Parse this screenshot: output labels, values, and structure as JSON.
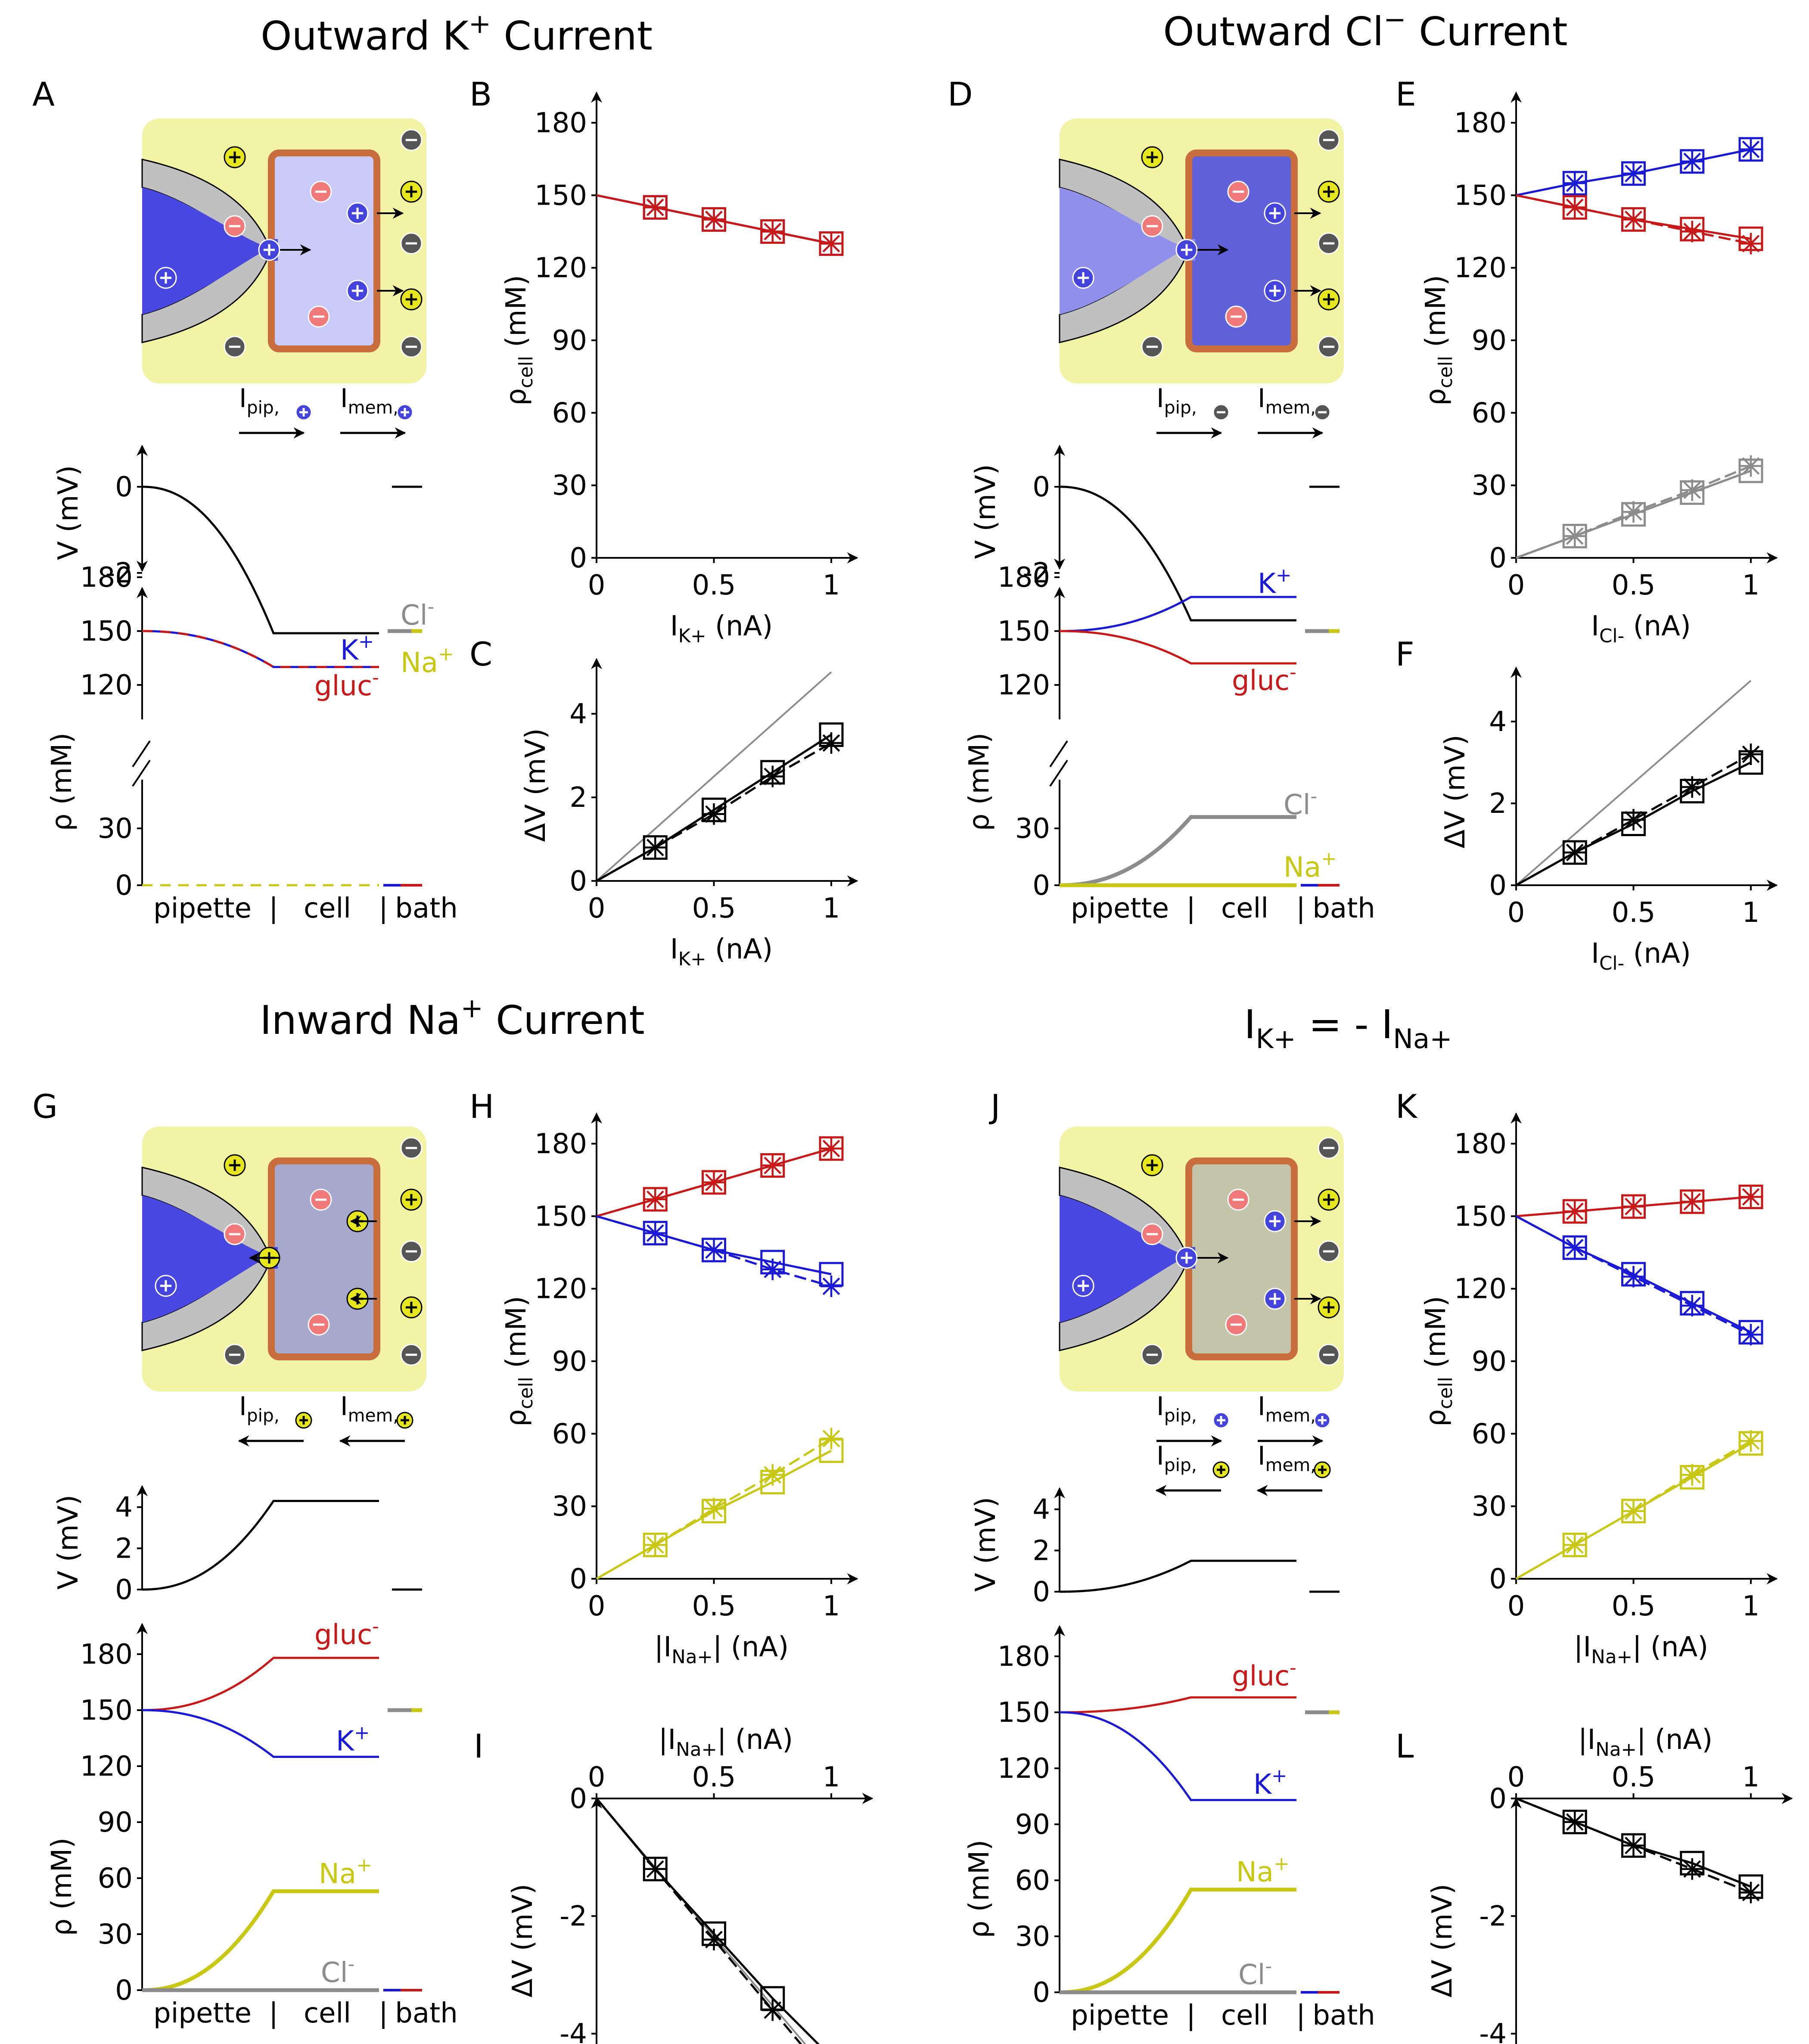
{
  "sections": [
    {
      "title": "Outward K",
      "sup": "+",
      "tail": " Current"
    },
    {
      "title": "Outward Cl",
      "sup": "−",
      "tail": " Current"
    },
    {
      "title": "Inward Na",
      "sup": "+",
      "tail": " Current"
    },
    {
      "title": "I",
      "sub": "K+",
      "mid": " = - I",
      "sub2": "Na+"
    }
  ],
  "panel_letters": [
    "A",
    "B",
    "C",
    "D",
    "E",
    "F",
    "G",
    "H",
    "I",
    "J",
    "K",
    "L"
  ],
  "colors": {
    "K": "#1a1ad6",
    "gluc": "#c81818",
    "Cl": "#8c8c8c",
    "Na": "#c8c814",
    "black": "#000000",
    "bath": "#f3f3a6",
    "membrane": "#c86e3c"
  },
  "labels": {
    "pipette": "pipette",
    "cell": "cell",
    "bath": "bath",
    "sep": "|",
    "v_axis": "V (mV)",
    "rho_axis": "ρ (mM)",
    "rho_cell": "ρ",
    "rho_cell_sub": "cell",
    "rho_cell_unit": " (mM)",
    "dv_axis": "ΔV (mV)",
    "nA": " (nA)",
    "I": "I",
    "K": "K",
    "plus": "+",
    "gluc": "gluc",
    "minus": "-",
    "Cl": "Cl",
    "Na": "Na",
    "ipip": "I",
    "ipip_sub": "pip,",
    "imem": "I",
    "imem_sub": "mem,"
  },
  "xlabels": {
    "IK": "K+",
    "ICl": "Cl-",
    "INa": "Na+"
  },
  "chart_data": [
    {
      "id": "B",
      "type": "line",
      "xlabel": "I_K+ (nA)",
      "ylabel": "ρ_cell (mM)",
      "xlim": [
        0,
        1
      ],
      "ylim": [
        0,
        180
      ],
      "xticks": [
        "0",
        "0.5",
        "1"
      ],
      "yticks": [
        "0",
        "30",
        "60",
        "90",
        "120",
        "150",
        "180"
      ],
      "series": [
        {
          "color": "K",
          "x": [
            0,
            0.25,
            0.5,
            0.75,
            1
          ],
          "y": [
            150,
            145,
            140,
            135,
            130
          ]
        },
        {
          "color": "gluc",
          "x": [
            0,
            0.25,
            0.5,
            0.75,
            1
          ],
          "y": [
            150,
            145,
            140,
            135,
            130
          ]
        }
      ]
    },
    {
      "id": "C",
      "type": "line",
      "xlabel": "I_K+ (nA)",
      "ylabel": "ΔV (mV)",
      "xlim": [
        0,
        1
      ],
      "ylim": [
        0,
        5
      ],
      "xticks": [
        "0",
        "0.5",
        "1"
      ],
      "yticks": [
        "0",
        "2",
        "4"
      ],
      "series": [
        {
          "color": "Cl",
          "x": [
            0,
            1
          ],
          "y": [
            0,
            5
          ],
          "nomarker": true
        },
        {
          "color": "black",
          "x": [
            0,
            0.25,
            0.5,
            0.75,
            1
          ],
          "y": [
            0,
            0.8,
            1.7,
            2.6,
            3.5
          ],
          "y2": [
            0,
            0.8,
            1.6,
            2.5,
            3.3
          ]
        }
      ]
    },
    {
      "id": "E",
      "type": "line",
      "xlabel": "I_Cl- (nA)",
      "ylabel": "ρ_cell (mM)",
      "xlim": [
        0,
        1
      ],
      "ylim": [
        0,
        180
      ],
      "xticks": [
        "0",
        "0.5",
        "1"
      ],
      "yticks": [
        "0",
        "30",
        "60",
        "90",
        "120",
        "150",
        "180"
      ],
      "series": [
        {
          "color": "K",
          "x": [
            0,
            0.25,
            0.5,
            0.75,
            1
          ],
          "y": [
            150,
            155,
            159,
            164,
            169
          ]
        },
        {
          "color": "gluc",
          "x": [
            0,
            0.25,
            0.5,
            0.75,
            1
          ],
          "y": [
            150,
            145,
            140,
            136,
            132
          ],
          "y2": [
            150,
            145,
            140,
            135,
            130
          ]
        },
        {
          "color": "Cl",
          "x": [
            0,
            0.25,
            0.5,
            0.75,
            1
          ],
          "y": [
            0,
            9,
            18,
            27,
            36
          ],
          "y2": [
            0,
            9,
            19,
            28,
            38
          ]
        }
      ]
    },
    {
      "id": "F",
      "type": "line",
      "xlabel": "I_Cl- (nA)",
      "ylabel": "ΔV (mV)",
      "xlim": [
        0,
        1
      ],
      "ylim": [
        0,
        5
      ],
      "xticks": [
        "0",
        "0.5",
        "1"
      ],
      "yticks": [
        "0",
        "2",
        "4"
      ],
      "series": [
        {
          "color": "Cl",
          "x": [
            0,
            1
          ],
          "y": [
            0,
            5
          ],
          "nomarker": true
        },
        {
          "color": "black",
          "x": [
            0,
            0.25,
            0.5,
            0.75,
            1
          ],
          "y": [
            0,
            0.8,
            1.5,
            2.3,
            3.0
          ],
          "y2": [
            0,
            0.8,
            1.6,
            2.4,
            3.2
          ]
        }
      ]
    },
    {
      "id": "H",
      "type": "line",
      "xlabel": "|I_Na+| (nA)",
      "ylabel": "ρ_cell (mM)",
      "xlim": [
        0,
        1
      ],
      "ylim": [
        0,
        180
      ],
      "xticks": [
        "0",
        "0.5",
        "1"
      ],
      "yticks": [
        "0",
        "30",
        "60",
        "90",
        "120",
        "150",
        "180"
      ],
      "series": [
        {
          "color": "gluc",
          "x": [
            0,
            0.25,
            0.5,
            0.75,
            1
          ],
          "y": [
            150,
            157,
            164,
            171,
            178
          ]
        },
        {
          "color": "K",
          "x": [
            0,
            0.25,
            0.5,
            0.75,
            1
          ],
          "y": [
            150,
            143,
            136,
            131,
            126
          ],
          "y2": [
            150,
            143,
            136,
            128,
            121
          ]
        },
        {
          "color": "Na",
          "x": [
            0,
            0.25,
            0.5,
            0.75,
            1
          ],
          "y": [
            0,
            14,
            28,
            40,
            53
          ],
          "y2": [
            0,
            14,
            29,
            43,
            58
          ]
        }
      ]
    },
    {
      "id": "I",
      "type": "line",
      "xlabel": "|I_Na+| (nA)",
      "ylabel": "ΔV (mV)",
      "xlim": [
        0,
        1
      ],
      "ylim": [
        -5,
        0
      ],
      "xticks": [
        "0",
        "0.5",
        "1"
      ],
      "yticks": [
        "0",
        "-2",
        "-4"
      ],
      "xaxis_top": true,
      "series": [
        {
          "color": "Cl",
          "x": [
            0,
            1
          ],
          "y": [
            0,
            -4.7
          ],
          "nomarker": true
        },
        {
          "color": "black",
          "x": [
            0,
            0.25,
            0.5,
            0.75,
            1
          ],
          "y": [
            0,
            -1.2,
            -2.3,
            -3.4,
            -4.4
          ],
          "y2": [
            0,
            -1.2,
            -2.4,
            -3.6,
            -4.8
          ]
        }
      ]
    },
    {
      "id": "K",
      "type": "line",
      "xlabel": "|I_Na+| (nA)",
      "ylabel": "ρ_cell (mM)",
      "xlim": [
        0,
        1
      ],
      "ylim": [
        0,
        180
      ],
      "xticks": [
        "0",
        "0.5",
        "1"
      ],
      "yticks": [
        "0",
        "30",
        "60",
        "90",
        "120",
        "150",
        "180"
      ],
      "series": [
        {
          "color": "gluc",
          "x": [
            0,
            0.25,
            0.5,
            0.75,
            1
          ],
          "y": [
            150,
            152,
            154,
            156,
            158
          ]
        },
        {
          "color": "K",
          "x": [
            0,
            0.25,
            0.5,
            0.75,
            1
          ],
          "y": [
            150,
            137,
            126,
            114,
            102
          ],
          "y2": [
            150,
            137,
            125,
            113,
            101
          ]
        },
        {
          "color": "Na",
          "x": [
            0,
            0.25,
            0.5,
            0.75,
            1
          ],
          "y": [
            0,
            14,
            28,
            42,
            56
          ],
          "y2": [
            0,
            14,
            28,
            43,
            57
          ]
        }
      ]
    },
    {
      "id": "L",
      "type": "line",
      "xlabel": "|I_Na+| (nA)",
      "ylabel": "ΔV (mV)",
      "xlim": [
        0,
        1
      ],
      "ylim": [
        -5,
        0
      ],
      "xticks": [
        "0",
        "0.5",
        "1"
      ],
      "yticks": [
        "0",
        "-2",
        "-4"
      ],
      "xaxis_top": true,
      "series": [
        {
          "color": "black",
          "x": [
            0,
            0.25,
            0.5,
            0.75,
            1
          ],
          "y": [
            0,
            -0.4,
            -0.8,
            -1.1,
            -1.5
          ],
          "y2": [
            0,
            -0.4,
            -0.8,
            -1.2,
            -1.6
          ]
        }
      ]
    }
  ],
  "profiles": [
    {
      "id": "A",
      "v_yticks": [
        "0",
        "-2"
      ],
      "v_final": -3.4,
      "rho_top_ticks": [
        "120",
        "150",
        "180"
      ],
      "rho_bot_ticks": [
        "0",
        "30"
      ],
      "rho_low_unit": 30,
      "lines": [
        {
          "ion": "K",
          "start": 150,
          "end": 130
        },
        {
          "ion": "gluc",
          "start": 150,
          "end": 130,
          "dash": true
        },
        {
          "ion": "Cl",
          "start": 0,
          "end": 0,
          "dash": true
        },
        {
          "ion": "Na",
          "start": 0,
          "end": 0,
          "dash": true
        }
      ],
      "bath": [
        {
          "ion": "Cl",
          "y": 150
        },
        {
          "ion": "Na",
          "y": 150
        }
      ],
      "tags": [
        {
          "ion": "K",
          "text": "K",
          "sup": "+",
          "yv": 139
        },
        {
          "ion": "gluc",
          "text": "gluc",
          "sup": "-",
          "yv": 119
        },
        {
          "ion": "Cl",
          "text": "Cl",
          "sup": "-",
          "yv": 164,
          "right": true
        },
        {
          "ion": "Na",
          "text": "Na",
          "sup": "+",
          "yv": 141,
          "right": true
        }
      ]
    },
    {
      "id": "D",
      "v_yticks": [
        "0",
        "-2"
      ],
      "v_final": -3.1,
      "rho_top_ticks": [
        "120",
        "150",
        "180"
      ],
      "rho_bot_ticks": [
        "0",
        "30"
      ],
      "rho_low_unit": 30,
      "lines": [
        {
          "ion": "K",
          "start": 150,
          "end": 169
        },
        {
          "ion": "gluc",
          "start": 150,
          "end": 132
        },
        {
          "ion": "Cl",
          "start": 0,
          "end": 36,
          "thick": true
        },
        {
          "ion": "Na",
          "start": 0,
          "end": 0,
          "thick": true
        }
      ],
      "bath": [
        {
          "ion": "Cl",
          "y": 150
        },
        {
          "ion": "Na",
          "y": 150
        }
      ],
      "tags": [
        {
          "ion": "K",
          "text": "K",
          "sup": "+",
          "yv": 176
        },
        {
          "ion": "gluc",
          "text": "gluc",
          "sup": "-",
          "yv": 122
        },
        {
          "ion": "Cl",
          "text": "Cl",
          "sup": "-",
          "low": 44
        },
        {
          "ion": "Na",
          "text": "Na",
          "sup": "+",
          "low": 10
        }
      ]
    },
    {
      "id": "G",
      "v_yticks": [
        "0",
        "2",
        "4"
      ],
      "v_final": 4.3,
      "rho_ticks": [
        "0",
        "30",
        "60",
        "90",
        "120",
        "150",
        "180"
      ],
      "lines": [
        {
          "ion": "gluc",
          "start": 150,
          "end": 178
        },
        {
          "ion": "K",
          "start": 150,
          "end": 125
        },
        {
          "ion": "Na",
          "start": 0,
          "end": 53,
          "thick": true
        },
        {
          "ion": "Cl",
          "start": 0,
          "end": 0,
          "thick": true
        }
      ],
      "bath": [
        {
          "ion": "Cl",
          "y": 150
        },
        {
          "ion": "Na",
          "y": 150
        }
      ],
      "tags": [
        {
          "ion": "gluc",
          "text": "gluc",
          "sup": "-",
          "yv": 190
        },
        {
          "ion": "K",
          "text": "K",
          "sup": "+",
          "yv": 133
        },
        {
          "ion": "Na",
          "text": "Na",
          "sup": "+",
          "yv": 62
        },
        {
          "ion": "Cl",
          "text": "Cl",
          "sup": "-",
          "yv": 9
        }
      ]
    },
    {
      "id": "J",
      "v_yticks": [
        "0",
        "2",
        "4"
      ],
      "v_final": 1.5,
      "rho_ticks": [
        "0",
        "30",
        "60",
        "90",
        "120",
        "150",
        "180"
      ],
      "lines": [
        {
          "ion": "gluc",
          "start": 150,
          "end": 158
        },
        {
          "ion": "K",
          "start": 150,
          "end": 103
        },
        {
          "ion": "Na",
          "start": 0,
          "end": 55,
          "thick": true
        },
        {
          "ion": "Cl",
          "start": 0,
          "end": 0,
          "thick": true
        }
      ],
      "bath": [
        {
          "ion": "Cl",
          "y": 150
        },
        {
          "ion": "Na",
          "y": 150
        }
      ],
      "tags": [
        {
          "ion": "gluc",
          "text": "gluc",
          "sup": "-",
          "yv": 169
        },
        {
          "ion": "K",
          "text": "K",
          "sup": "+",
          "yv": 111
        },
        {
          "ion": "Na",
          "text": "Na",
          "sup": "+",
          "yv": 64
        },
        {
          "ion": "Cl",
          "text": "Cl",
          "sup": "-",
          "yv": 9
        }
      ]
    }
  ],
  "cartoons": [
    {
      "id": "A",
      "cell_fill": "#c8caf8",
      "tip_fill": "#4848e0",
      "pip_dir": 1,
      "mem_dir": 1,
      "pip_ion": "+",
      "pip_color": "K",
      "mem_ion": "+",
      "mem_color": "K"
    },
    {
      "id": "D",
      "cell_fill": "#6060d8",
      "tip_fill": "#9090ec",
      "pip_dir": 1,
      "mem_dir": 1,
      "pip_ion": "-",
      "pip_color": "Cl",
      "mem_ion": "-",
      "mem_color": "Cl"
    },
    {
      "id": "G",
      "cell_fill": "#a6a8cc",
      "tip_fill": "#4848e0",
      "pip_dir": -1,
      "mem_dir": -1,
      "pip_ion": "+",
      "pip_color": "Na",
      "mem_ion": "+",
      "mem_color": "Na"
    },
    {
      "id": "J",
      "cell_fill": "#c4c4a8",
      "tip_fill": "#4848e0",
      "pip_dir": 1,
      "mem_dir": 1,
      "pip_ion": "+",
      "pip_color": "K",
      "mem_ion": "+",
      "mem_color": "K",
      "second": {
        "dir": -1,
        "ion": "+",
        "color": "Na"
      }
    }
  ]
}
